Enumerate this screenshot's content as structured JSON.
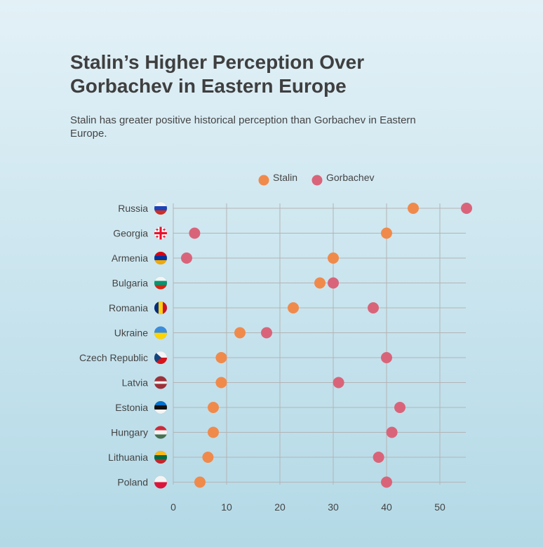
{
  "title": "Stalin’s Higher Perception Over Gorbachev in Eastern Europe",
  "subtitle": "Stalin has greater positive historical perception than Gorbachev in Eastern Europe.",
  "colors": {
    "stalin": "#f08a4b",
    "gorbachev": "#d9647a",
    "grid": "#b4b4b4"
  },
  "chart_data": {
    "type": "scatter",
    "title": "Stalin’s Higher Perception Over Gorbachev in Eastern Europe",
    "subtitle": "Stalin has greater positive historical perception than Gorbachev in Eastern Europe.",
    "categories": [
      "Russia",
      "Georgia",
      "Armenia",
      "Bulgaria",
      "Romania",
      "Ukraine",
      "Czech Republic",
      "Latvia",
      "Estonia",
      "Hungary",
      "Lithuania",
      "Poland"
    ],
    "series": [
      {
        "name": "Stalin",
        "color": "#f08a4b",
        "values": [
          45,
          40,
          30,
          27.5,
          22.5,
          12.5,
          9,
          9,
          7.5,
          7.5,
          6.5,
          5
        ]
      },
      {
        "name": "Gorbachev",
        "color": "#d9647a",
        "values": [
          55,
          4,
          2.5,
          30,
          37.5,
          17.5,
          40,
          31,
          42.5,
          41,
          38.5,
          40
        ]
      }
    ],
    "x_ticks": [
      0,
      10,
      20,
      30,
      40,
      50
    ],
    "xlim": [
      0,
      55
    ],
    "grid": true,
    "legend": "top-center",
    "flags": [
      "russia-flag-icon",
      "georgia-flag-icon",
      "armenia-flag-icon",
      "bulgaria-flag-icon",
      "romania-flag-icon",
      "ukraine-flag-icon",
      "czech-flag-icon",
      "latvia-flag-icon",
      "estonia-flag-icon",
      "hungary-flag-icon",
      "lithuania-flag-icon",
      "poland-flag-icon"
    ]
  }
}
